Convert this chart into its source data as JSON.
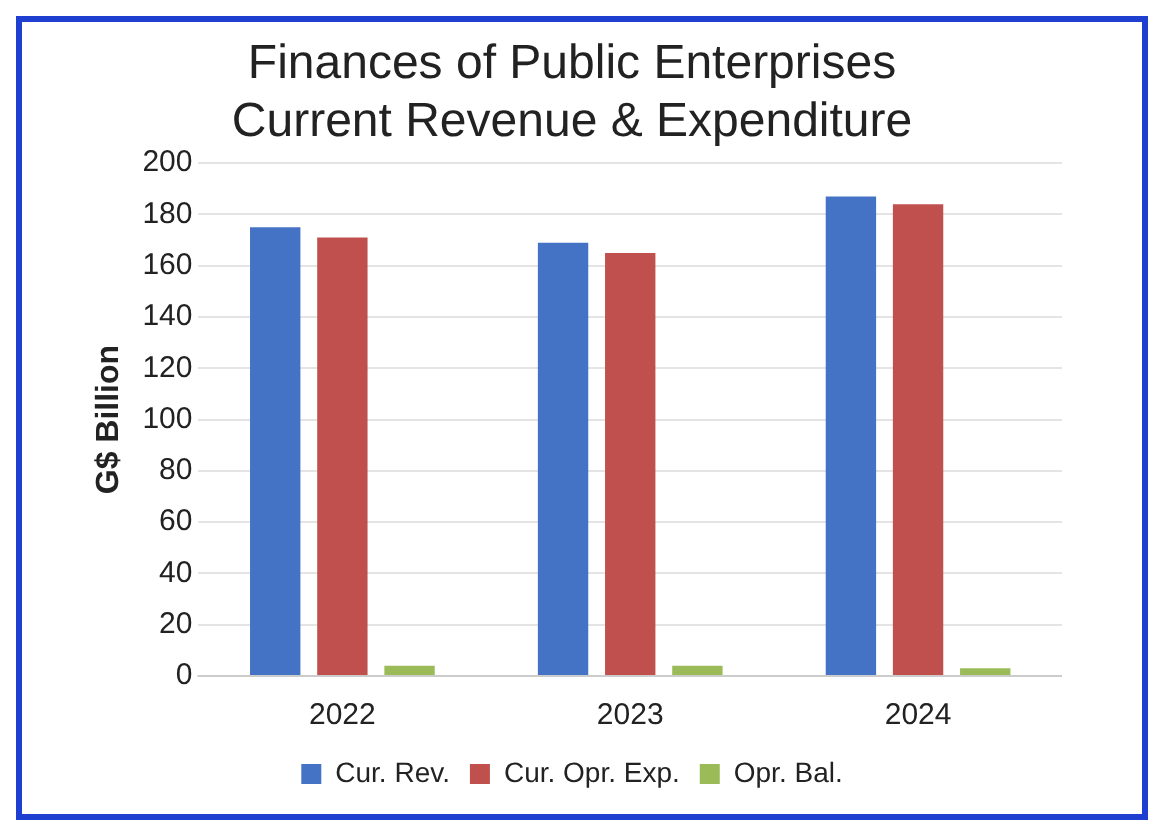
{
  "chart_data": {
    "type": "bar",
    "title": [
      "Finances of Public Enterprises",
      "Current Revenue & Expenditure"
    ],
    "ylabel": "G$ Billion",
    "categories": [
      "2022",
      "2023",
      "2024"
    ],
    "series": [
      {
        "name": "Cur. Rev.",
        "color": "#4472c4",
        "values": [
          175,
          169,
          187
        ]
      },
      {
        "name": "Cur. Opr. Exp.",
        "color": "#c0504d",
        "values": [
          171,
          165,
          184
        ]
      },
      {
        "name": "Opr. Bal.",
        "color": "#9bbb59",
        "values": [
          4,
          4,
          3
        ]
      }
    ],
    "ylim": [
      0,
      200
    ],
    "yticks": [
      0,
      20,
      40,
      60,
      80,
      100,
      120,
      140,
      160,
      180,
      200
    ],
    "grid": "y",
    "legend": "bottom"
  }
}
